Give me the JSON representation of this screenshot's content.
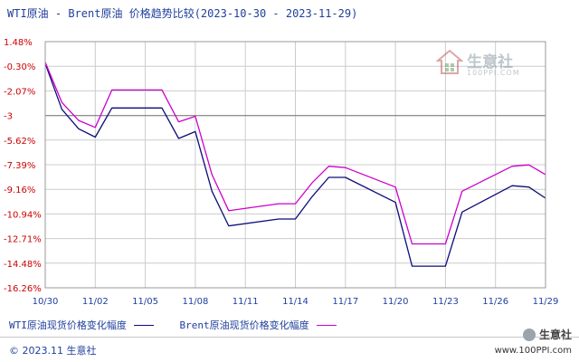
{
  "title": "WTI原油 - Brent原油 价格趋势比较(2023-10-30 - 2023-11-29)",
  "watermark": {
    "name": "生意社",
    "url": "100PPI.COM"
  },
  "legend": {
    "wti": "WTI原油现货价格变化幅度",
    "brent": "Brent原油现货价格变化幅度"
  },
  "footer": {
    "copyright": "© 2023.11 生意社",
    "brand_name": "生意社",
    "brand_url": "www.100PPI.com"
  },
  "colors": {
    "wti": "#0c0c7a",
    "brent": "#cc00cc",
    "axis_label": "#cc0000",
    "grid": "#cccccc"
  },
  "chart_data": {
    "type": "line",
    "title": "WTI原油 - Brent原油 价格趋势比较(2023-10-30 - 2023-11-29)",
    "x_ticks": [
      "10/30",
      "11/02",
      "11/05",
      "11/08",
      "11/11",
      "11/14",
      "11/17",
      "11/20",
      "11/23",
      "11/26",
      "11/29"
    ],
    "y_ticks": [
      "1.48%",
      "-0.30%",
      "-2.07%",
      "-3",
      "-5.62%",
      "-7.39%",
      "-9.16%",
      "-10.94%",
      "-12.71%",
      "-14.48%",
      "-16.26%"
    ],
    "ylim": [
      -16.26,
      1.48
    ],
    "reference_line": -3.85,
    "grid": true,
    "series": [
      {
        "name": "WTI原油现货价格变化幅度",
        "color": "#0c0c7a",
        "points": [
          [
            "10/30",
            -0.1
          ],
          [
            "10/31",
            -3.4
          ],
          [
            "11/01",
            -4.8
          ],
          [
            "11/02",
            -5.4
          ],
          [
            "11/03",
            -3.3
          ],
          [
            "11/06",
            -3.3
          ],
          [
            "11/07",
            -5.5
          ],
          [
            "11/08",
            -5.0
          ],
          [
            "11/09",
            -9.3
          ],
          [
            "11/10",
            -11.8
          ],
          [
            "11/13",
            -11.3
          ],
          [
            "11/14",
            -11.3
          ],
          [
            "11/15",
            -9.7
          ],
          [
            "11/16",
            -8.3
          ],
          [
            "11/17",
            -8.3
          ],
          [
            "11/20",
            -10.1
          ],
          [
            "11/21",
            -14.7
          ],
          [
            "11/22",
            -14.7
          ],
          [
            "11/23",
            -14.7
          ],
          [
            "11/24",
            -10.8
          ],
          [
            "11/27",
            -8.9
          ],
          [
            "11/28",
            -9.0
          ],
          [
            "11/29",
            -9.8
          ]
        ]
      },
      {
        "name": "Brent原油现货价格变化幅度",
        "color": "#cc00cc",
        "points": [
          [
            "10/30",
            0.0
          ],
          [
            "10/31",
            -2.9
          ],
          [
            "11/01",
            -4.2
          ],
          [
            "11/02",
            -4.7
          ],
          [
            "11/03",
            -2.0
          ],
          [
            "11/06",
            -2.0
          ],
          [
            "11/07",
            -4.3
          ],
          [
            "11/08",
            -3.9
          ],
          [
            "11/09",
            -8.1
          ],
          [
            "11/10",
            -10.7
          ],
          [
            "11/13",
            -10.2
          ],
          [
            "11/14",
            -10.2
          ],
          [
            "11/15",
            -8.7
          ],
          [
            "11/16",
            -7.5
          ],
          [
            "11/17",
            -7.6
          ],
          [
            "11/20",
            -9.0
          ],
          [
            "11/21",
            -13.1
          ],
          [
            "11/22",
            -13.1
          ],
          [
            "11/23",
            -13.1
          ],
          [
            "11/24",
            -9.3
          ],
          [
            "11/27",
            -7.5
          ],
          [
            "11/28",
            -7.4
          ],
          [
            "11/29",
            -8.1
          ]
        ]
      }
    ]
  }
}
